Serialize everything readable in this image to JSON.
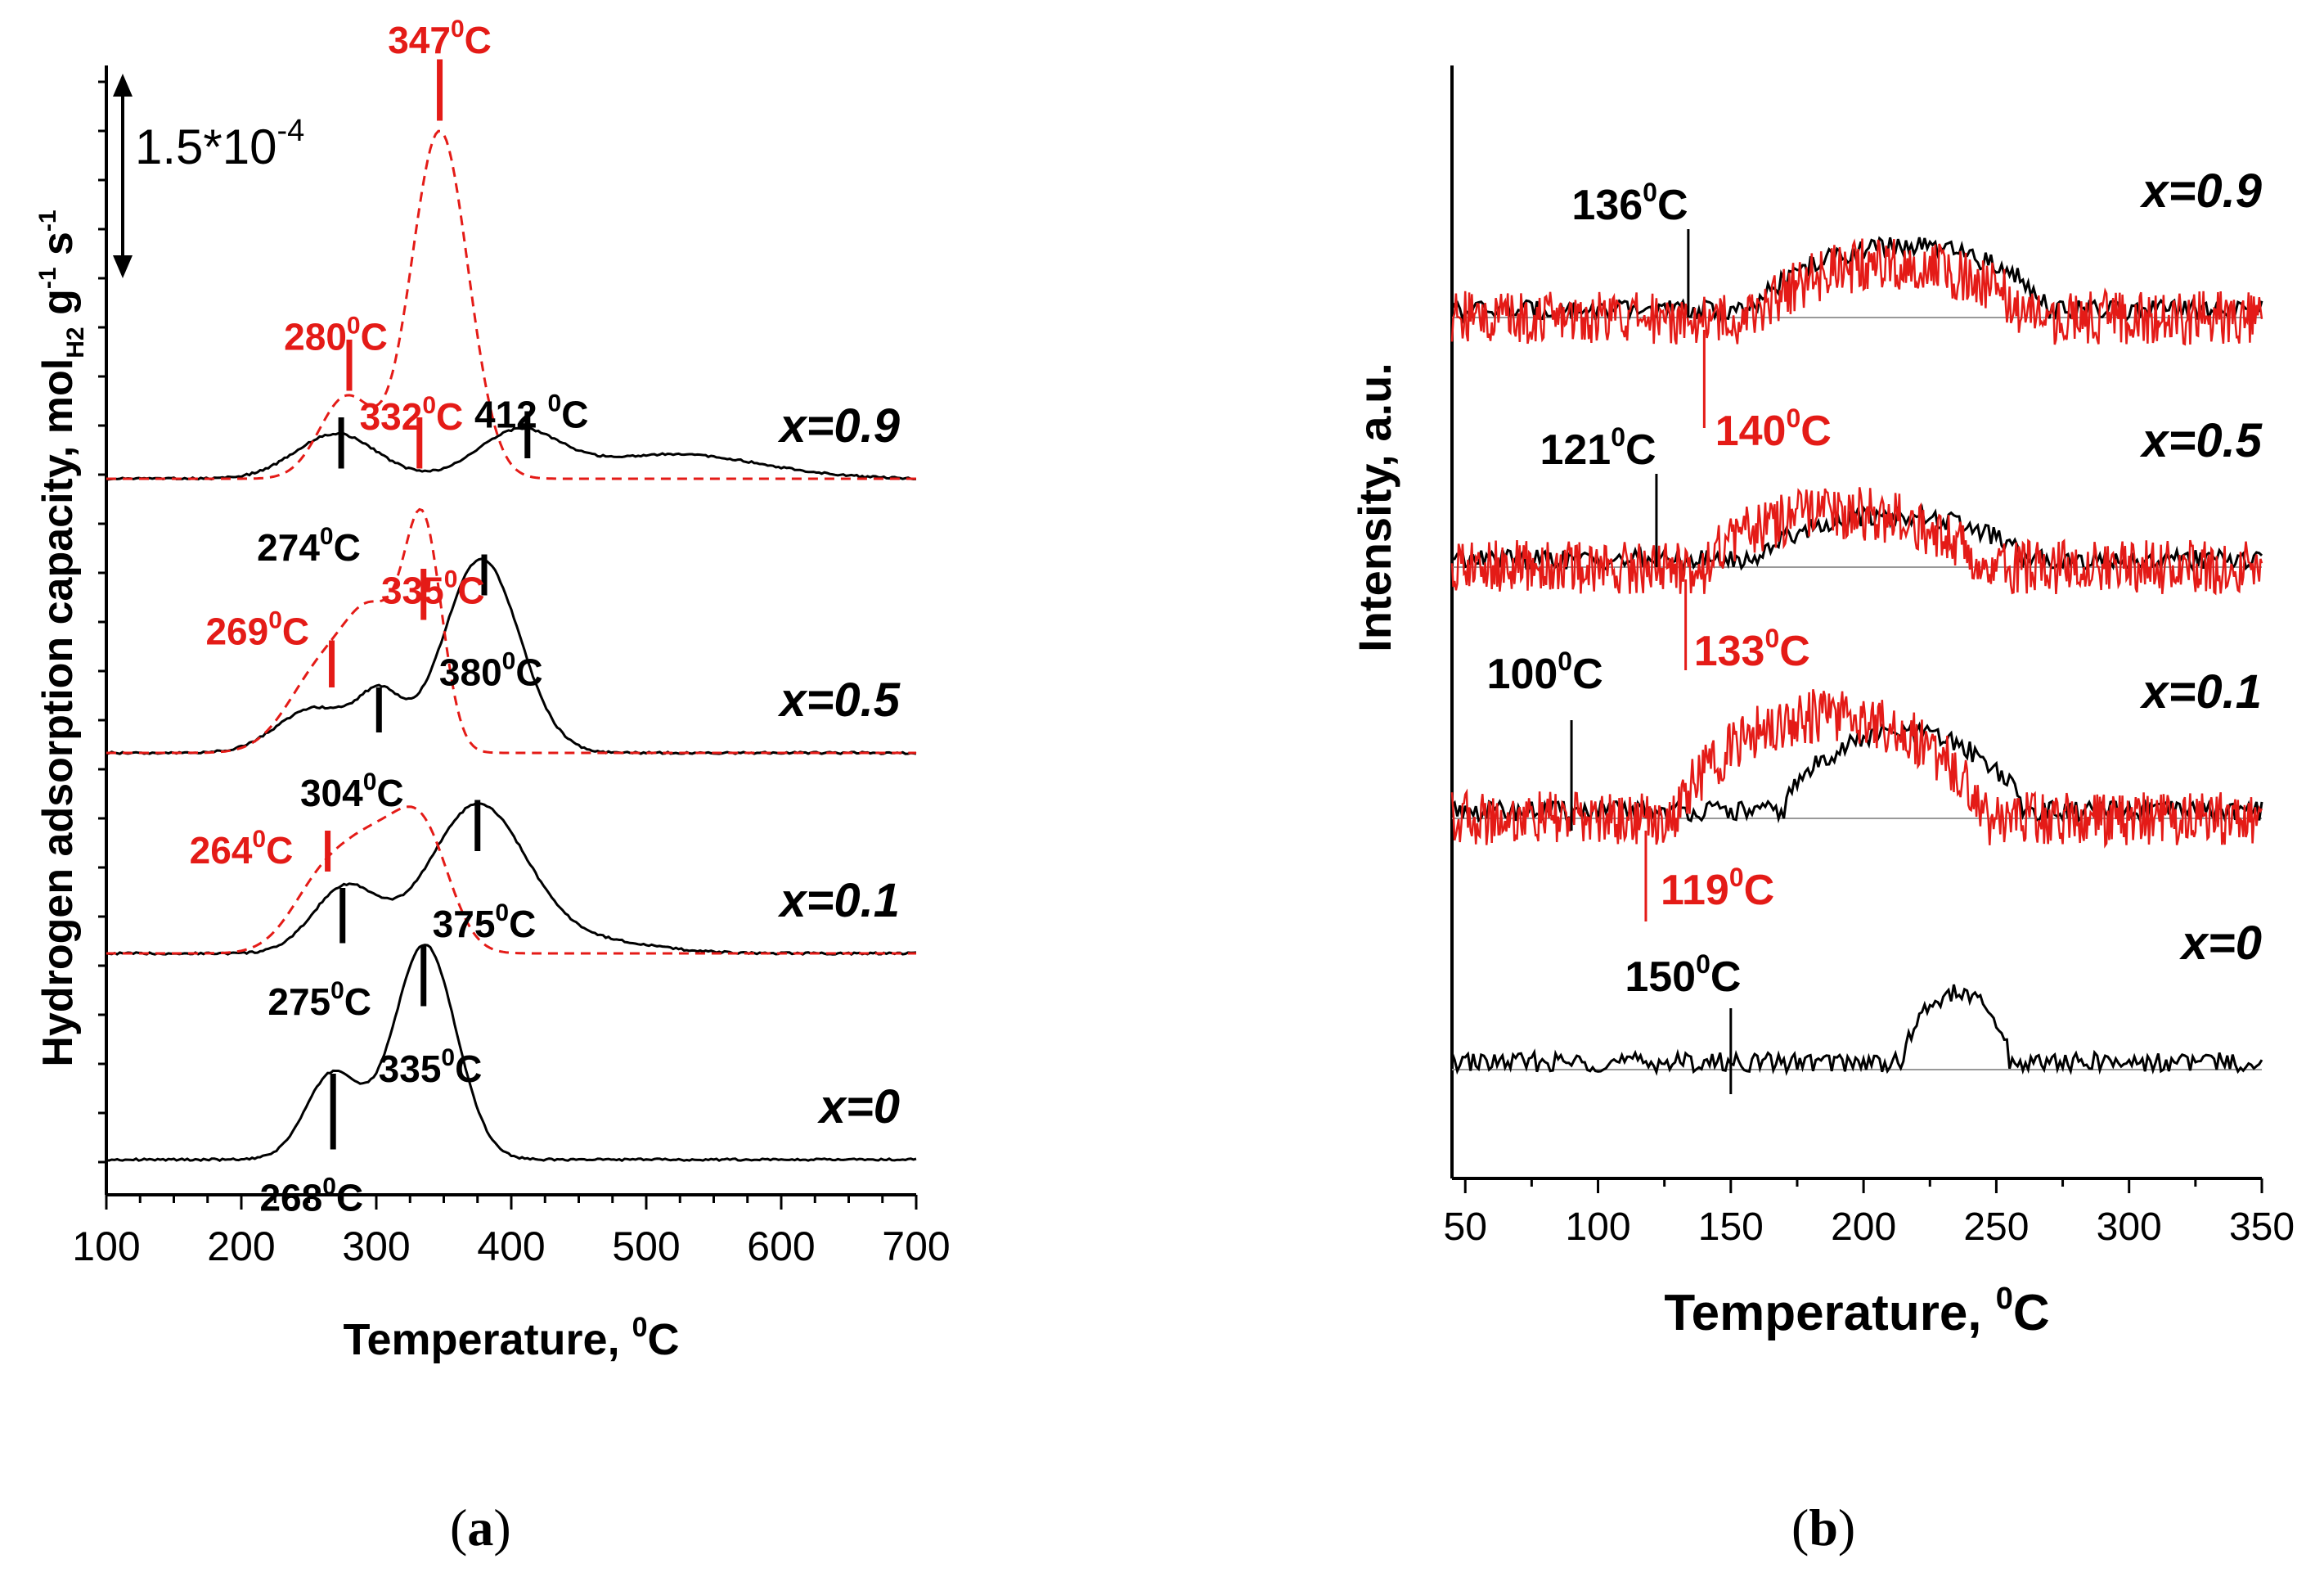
{
  "captions": {
    "a": "a",
    "b": "b"
  },
  "colors": {
    "black": "#000000",
    "red": "#e41b17",
    "baseline": "#999999"
  },
  "chart_data": [
    {
      "id": "a",
      "type": "line",
      "title": "",
      "xlabel_main": "Temperature, ",
      "xlabel_sup": "0",
      "xlabel_end": "C",
      "ylabel_main": "Hydrogen adsorption capacity, mol",
      "ylabel_sub": "H2",
      "ylabel_mid": " g",
      "ylabel_sup1": "-1",
      "ylabel_s": " s",
      "ylabel_sup2": "-1",
      "xlim": [
        100,
        700
      ],
      "xticks": [
        100,
        200,
        300,
        400,
        500,
        600,
        700
      ],
      "scale_bar": {
        "base": "1.5*10",
        "exp": "-4"
      },
      "stack": [
        {
          "label": "x=0",
          "baseline": 0,
          "black": [
            {
              "c": 268,
              "h": 0.42,
              "w": 20
            },
            {
              "c": 336,
              "h": 1.05,
              "w": 23
            }
          ],
          "red": null
        },
        {
          "label": "x=0.1",
          "baseline": 1.0,
          "black": [
            {
              "c": 277,
              "h": 0.32,
              "w": 24
            },
            {
              "c": 375,
              "h": 0.72,
              "w": 36
            },
            {
              "c": 460,
              "h": 0.06,
              "w": 45
            }
          ],
          "red": [
            {
              "c": 262,
              "h": 0.36,
              "w": 24
            },
            {
              "c": 300,
              "h": 0.42,
              "w": 22
            },
            {
              "c": 335,
              "h": 0.55,
              "w": 20
            }
          ]
        },
        {
          "label": "x=0.5",
          "baseline": 2.0,
          "black": [
            {
              "c": 255,
              "h": 0.22,
              "w": 28
            },
            {
              "c": 303,
              "h": 0.25,
              "w": 16
            },
            {
              "c": 378,
              "h": 0.95,
              "w": 28
            }
          ],
          "red": [
            {
              "c": 262,
              "h": 0.42,
              "w": 26
            },
            {
              "c": 300,
              "h": 0.55,
              "w": 20
            },
            {
              "c": 335,
              "h": 1.05,
              "w": 14
            }
          ]
        },
        {
          "label": "x=0.9",
          "baseline": 3.3,
          "black": [
            {
              "c": 270,
              "h": 0.22,
              "w": 30
            },
            {
              "c": 405,
              "h": 0.22,
              "w": 30
            },
            {
              "c": 520,
              "h": 0.12,
              "w": 65
            }
          ],
          "red": [
            {
              "c": 278,
              "h": 0.4,
              "w": 20
            },
            {
              "c": 347,
              "h": 1.7,
              "w": 21
            }
          ]
        }
      ],
      "annotations": [
        {
          "text": "268",
          "color": "black",
          "x": 268,
          "stack": 0,
          "tick": [
            0.05,
            0.42
          ],
          "lx": 252,
          "ly": -0.03
        },
        {
          "text": "335",
          "color": "black",
          "x": 335,
          "stack": 0,
          "tick": [
            0.75,
            1.05
          ],
          "lx": 340,
          "ly": 0.6
        },
        {
          "text": "275",
          "color": "black",
          "x": 275,
          "stack": 1,
          "tick": [
            0.05,
            0.32
          ],
          "lx": 258,
          "ly": -0.08
        },
        {
          "text": "375",
          "color": "black",
          "x": 375,
          "stack": 1,
          "tick": [
            0.5,
            0.75
          ],
          "lx": 380,
          "ly": 0.3
        },
        {
          "text": "264",
          "color": "red",
          "x": 264,
          "stack": 1,
          "tick": [
            0.4,
            0.6
          ],
          "lx": 200,
          "ly": 0.66
        },
        {
          "text": "304",
          "color": "black",
          "x": 302,
          "stack": 2,
          "tick": [
            0.1,
            0.32
          ],
          "lx": 282,
          "ly": -0.04
        },
        {
          "text": "380",
          "color": "black",
          "x": 380,
          "stack": 2,
          "tick": [
            0.77,
            0.97
          ],
          "lx": 385,
          "ly": 0.55
        },
        {
          "text": "269",
          "color": "red",
          "x": 267,
          "stack": 2,
          "tick": [
            0.32,
            0.55
          ],
          "lx": 212,
          "ly": 0.75
        },
        {
          "text": "335",
          "color": "red",
          "x": 335,
          "stack": 2,
          "tick": [
            0.65,
            0.9
          ],
          "lx": 342,
          "ly": 0.95
        },
        {
          "text": "274",
          "color": "black",
          "x": 274,
          "stack": 3,
          "tick": [
            0.05,
            0.3
          ],
          "lx": 250,
          "ly": -0.18
        },
        {
          "text": "412 ",
          "color": "black",
          "x": 412,
          "stack": 3,
          "tick": [
            0.1,
            0.33
          ],
          "lx": 415,
          "ly": 0.47
        },
        {
          "text": "280",
          "color": "red",
          "x": 280,
          "stack": 3,
          "tick": [
            0.43,
            0.68
          ],
          "lx": 270,
          "ly": 0.85
        },
        {
          "text": "332",
          "color": "red",
          "x": 332,
          "stack": 3,
          "tick": [
            0.05,
            0.3
          ],
          "lx": 326,
          "ly": 0.46
        },
        {
          "text": "347",
          "color": "red",
          "x": 347,
          "stack": 3,
          "tick": [
            1.75,
            2.05
          ],
          "lx": 347,
          "ly": 2.3
        }
      ],
      "unit_sup": "0",
      "unit_c": "C"
    },
    {
      "id": "b",
      "type": "line",
      "xlabel_main": "Temperature, ",
      "xlabel_sup": "0",
      "xlabel_end": "C",
      "ylabel": "Intensity, a.u.",
      "xlim": [
        45,
        350
      ],
      "xticks": [
        50,
        100,
        150,
        200,
        250,
        300,
        350
      ],
      "stack": [
        {
          "label": "x=0",
          "baseline": 0,
          "black_hump": [
            215,
            255,
            0.28
          ],
          "red": false
        },
        {
          "label": "x=0.1",
          "baseline": 1.0,
          "black_hump": [
            170,
            260,
            0.32
          ],
          "red_hump": [
            130,
            245,
            0.42
          ]
        },
        {
          "label": "x=0.5",
          "baseline": 2.0,
          "black_hump": [
            160,
            260,
            0.18
          ],
          "red_hump": [
            140,
            245,
            0.22
          ]
        },
        {
          "label": "x=0.9",
          "baseline": 3.0,
          "black_hump": [
            160,
            270,
            0.26
          ],
          "red_hump": [
            160,
            260,
            0.22
          ]
        }
      ],
      "annotations": [
        {
          "text": "150",
          "color": "black",
          "x": 150,
          "stack": 0,
          "tick": [
            -0.1,
            0.25
          ],
          "lx": 132,
          "ly": 0.32
        },
        {
          "text": "100",
          "color": "black",
          "x": 90,
          "stack": 1,
          "tick": [
            -0.05,
            0.4
          ],
          "lx": 80,
          "ly": 0.53
        },
        {
          "text": "119",
          "color": "red",
          "x": 118,
          "stack": 1,
          "tick": [
            -0.42,
            -0.05
          ],
          "lx": 145,
          "ly": -0.35
        },
        {
          "text": "121",
          "color": "black",
          "x": 122,
          "stack": 2,
          "tick": [
            0.0,
            0.38
          ],
          "lx": 100,
          "ly": 0.42
        },
        {
          "text": "133",
          "color": "red",
          "x": 133,
          "stack": 2,
          "tick": [
            -0.42,
            -0.05
          ],
          "lx": 158,
          "ly": -0.4
        },
        {
          "text": "136",
          "color": "black",
          "x": 134,
          "stack": 3,
          "tick": [
            0.0,
            0.36
          ],
          "lx": 112,
          "ly": 0.4
        },
        {
          "text": "140",
          "color": "red",
          "x": 140,
          "stack": 3,
          "tick": [
            -0.45,
            -0.05
          ],
          "lx": 166,
          "ly": -0.52
        }
      ],
      "unit_sup": "0",
      "unit_c": "C"
    }
  ]
}
